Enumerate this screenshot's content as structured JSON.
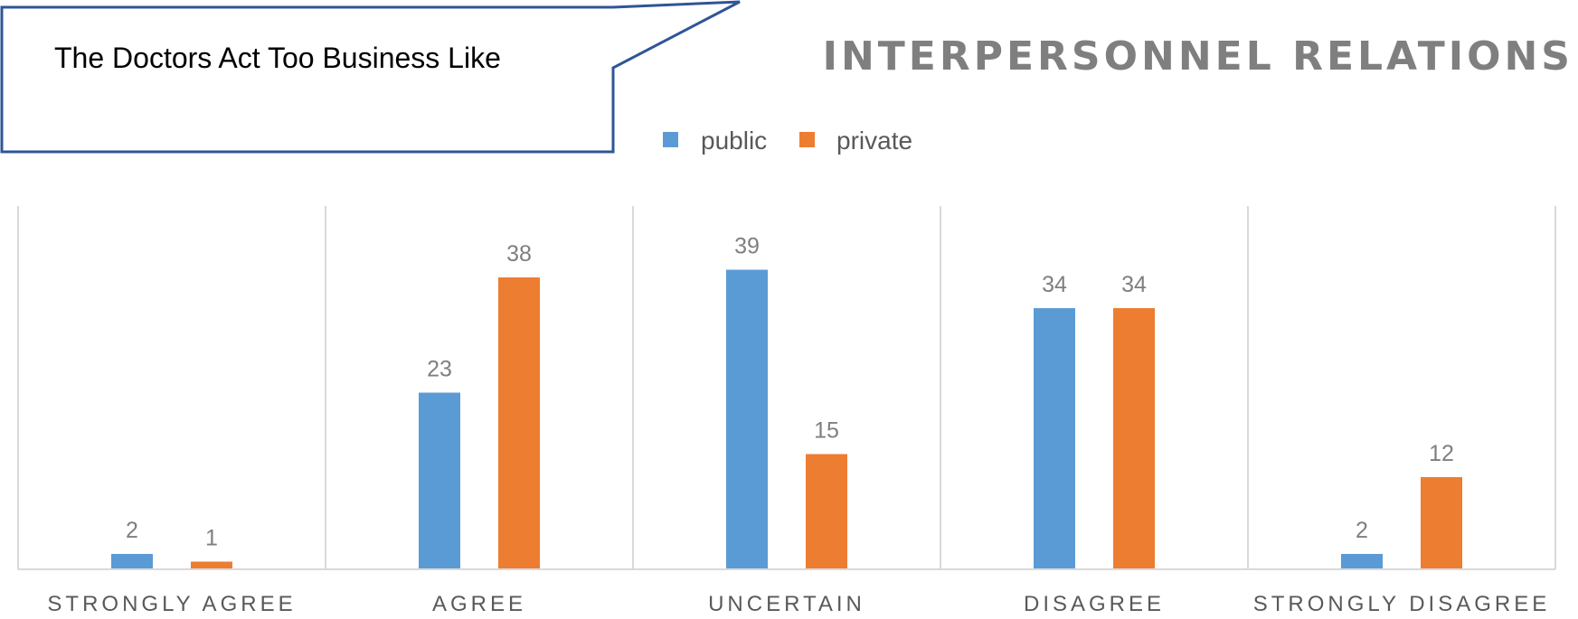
{
  "callout": {
    "text": "The Doctors Act Too Business Like"
  },
  "chart_data": {
    "type": "bar",
    "title": "INTERPERSONNEL RELATIONS",
    "categories": [
      "STRONGLY AGREE",
      "AGREE",
      "UNCERTAIN",
      "DISAGREE",
      "STRONGLY DISAGREE"
    ],
    "series": [
      {
        "name": "public",
        "values": [
          2,
          23,
          39,
          34,
          2
        ],
        "color": "#5b9bd5"
      },
      {
        "name": "private",
        "values": [
          1,
          38,
          15,
          34,
          12
        ],
        "color": "#ed7d31"
      }
    ],
    "ylim": [
      0,
      40
    ],
    "grid": false,
    "category_separators": true,
    "data_labels": true,
    "legend_placement": "top-center"
  }
}
